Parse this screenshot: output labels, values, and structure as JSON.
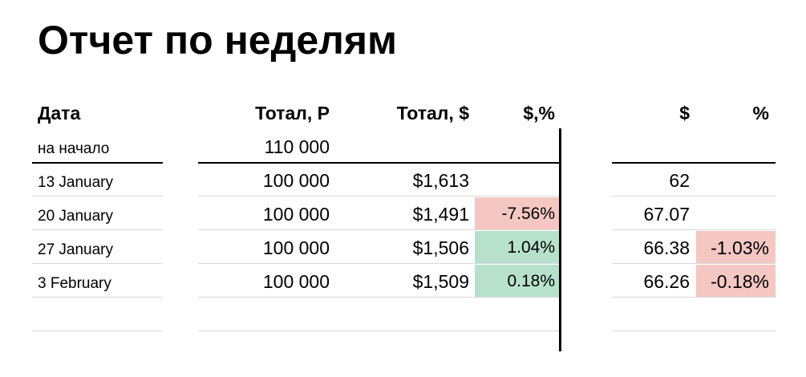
{
  "title": "Отчет по неделям",
  "colors": {
    "positive": "#b7e1cd",
    "negative": "#f4c7c3",
    "divider": "#000000",
    "gridline": "#d9d9d9"
  },
  "headers": {
    "date": "Дата",
    "total_rub": "Тотал, Р",
    "total_usd": "Тотал, $",
    "usd_pct": "$,%",
    "rate": "$",
    "rate_pct": "%"
  },
  "start_row": {
    "label": "на начало",
    "total_rub": "110 000"
  },
  "rows": [
    {
      "date": "13 January",
      "total_rub": "100 000",
      "total_usd": "$1,613",
      "usd_pct": "",
      "rate": "62",
      "rate_pct": ""
    },
    {
      "date": "20 January",
      "total_rub": "100 000",
      "total_usd": "$1,491",
      "usd_pct": "-7.56%",
      "rate": "67.07",
      "rate_pct": ""
    },
    {
      "date": "27 January",
      "total_rub": "100 000",
      "total_usd": "$1,506",
      "usd_pct": "1.04%",
      "rate": "66.38",
      "rate_pct": "-1.03%"
    },
    {
      "date": "3 February",
      "total_rub": "100 000",
      "total_usd": "$1,509",
      "usd_pct": "0.18%",
      "rate": "66.26",
      "rate_pct": "-0.18%"
    }
  ]
}
